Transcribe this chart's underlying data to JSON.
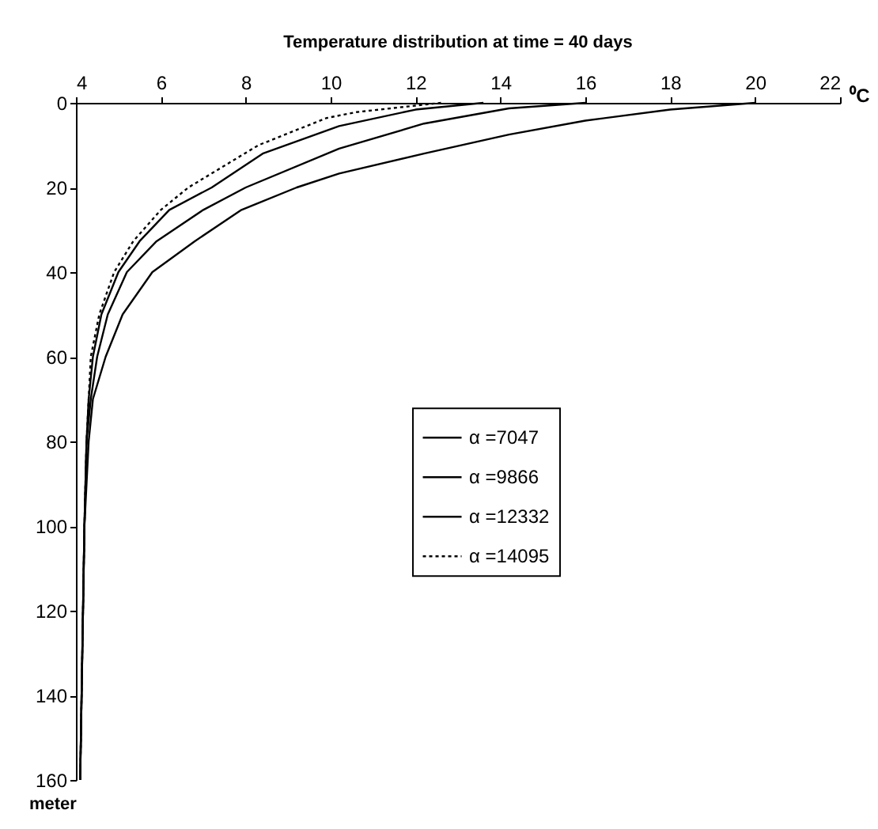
{
  "chart_data": {
    "type": "line",
    "title": "Temperature distribution at time = 40 days",
    "xlabel": "⁰C",
    "ylabel": "meter",
    "xlim": [
      4,
      22
    ],
    "xticks": [
      4,
      6,
      8,
      10,
      12,
      14,
      16,
      18,
      20,
      22
    ],
    "ylim": [
      160,
      0
    ],
    "yticks": [
      0,
      20,
      40,
      60,
      80,
      100,
      120,
      140,
      160
    ],
    "grid": false,
    "legend": "right",
    "marker": "none",
    "series": [
      {
        "name": "α =7047",
        "color": "#000000",
        "line_style": "solid",
        "x": [
          20,
          18,
          16,
          14.2,
          12.2,
          10.2,
          9.2,
          7.9,
          6.8,
          5.8,
          5.1,
          4.7,
          4.4,
          4.3,
          4.2,
          4.15,
          4.1
        ],
        "values": [
          0,
          1.6,
          4.2,
          7.5,
          12,
          16.7,
          20,
          25.3,
          32.7,
          40,
          50,
          60,
          70,
          80,
          100,
          130,
          160
        ]
      },
      {
        "name": "α =9866",
        "color": "#000000",
        "line_style": "solid",
        "x": [
          16,
          14.2,
          12.2,
          10.2,
          8,
          7,
          5.9,
          5.2,
          4.75,
          4.5,
          4.35,
          4.25,
          4.2,
          4.15,
          4.1
        ],
        "values": [
          0,
          1.3,
          4.9,
          10.8,
          20,
          25.3,
          32.7,
          40,
          50,
          60,
          70,
          80,
          100,
          130,
          160
        ]
      },
      {
        "name": "α =12332",
        "color": "#000000",
        "line_style": "solid",
        "x": [
          13.6,
          12,
          10.2,
          8.4,
          7.2,
          6.2,
          5.5,
          5,
          4.6,
          4.4,
          4.3,
          4.25,
          4.2,
          4.15,
          4.1
        ],
        "values": [
          0,
          1.6,
          5.5,
          12,
          20,
          25.3,
          32.7,
          40,
          50,
          60,
          70,
          80,
          100,
          130,
          160
        ]
      },
      {
        "name": "α =14095",
        "color": "#000000",
        "line_style": "dotted",
        "x": [
          12.6,
          10.6,
          9.9,
          8.3,
          6.65,
          6,
          5.35,
          4.9,
          4.55,
          4.35,
          4.3,
          4.25,
          4.2,
          4.15,
          4.1
        ],
        "values": [
          0,
          2.2,
          3.6,
          10,
          20,
          25.3,
          32.7,
          40,
          50,
          60,
          70,
          80,
          100,
          130,
          160
        ]
      }
    ]
  }
}
